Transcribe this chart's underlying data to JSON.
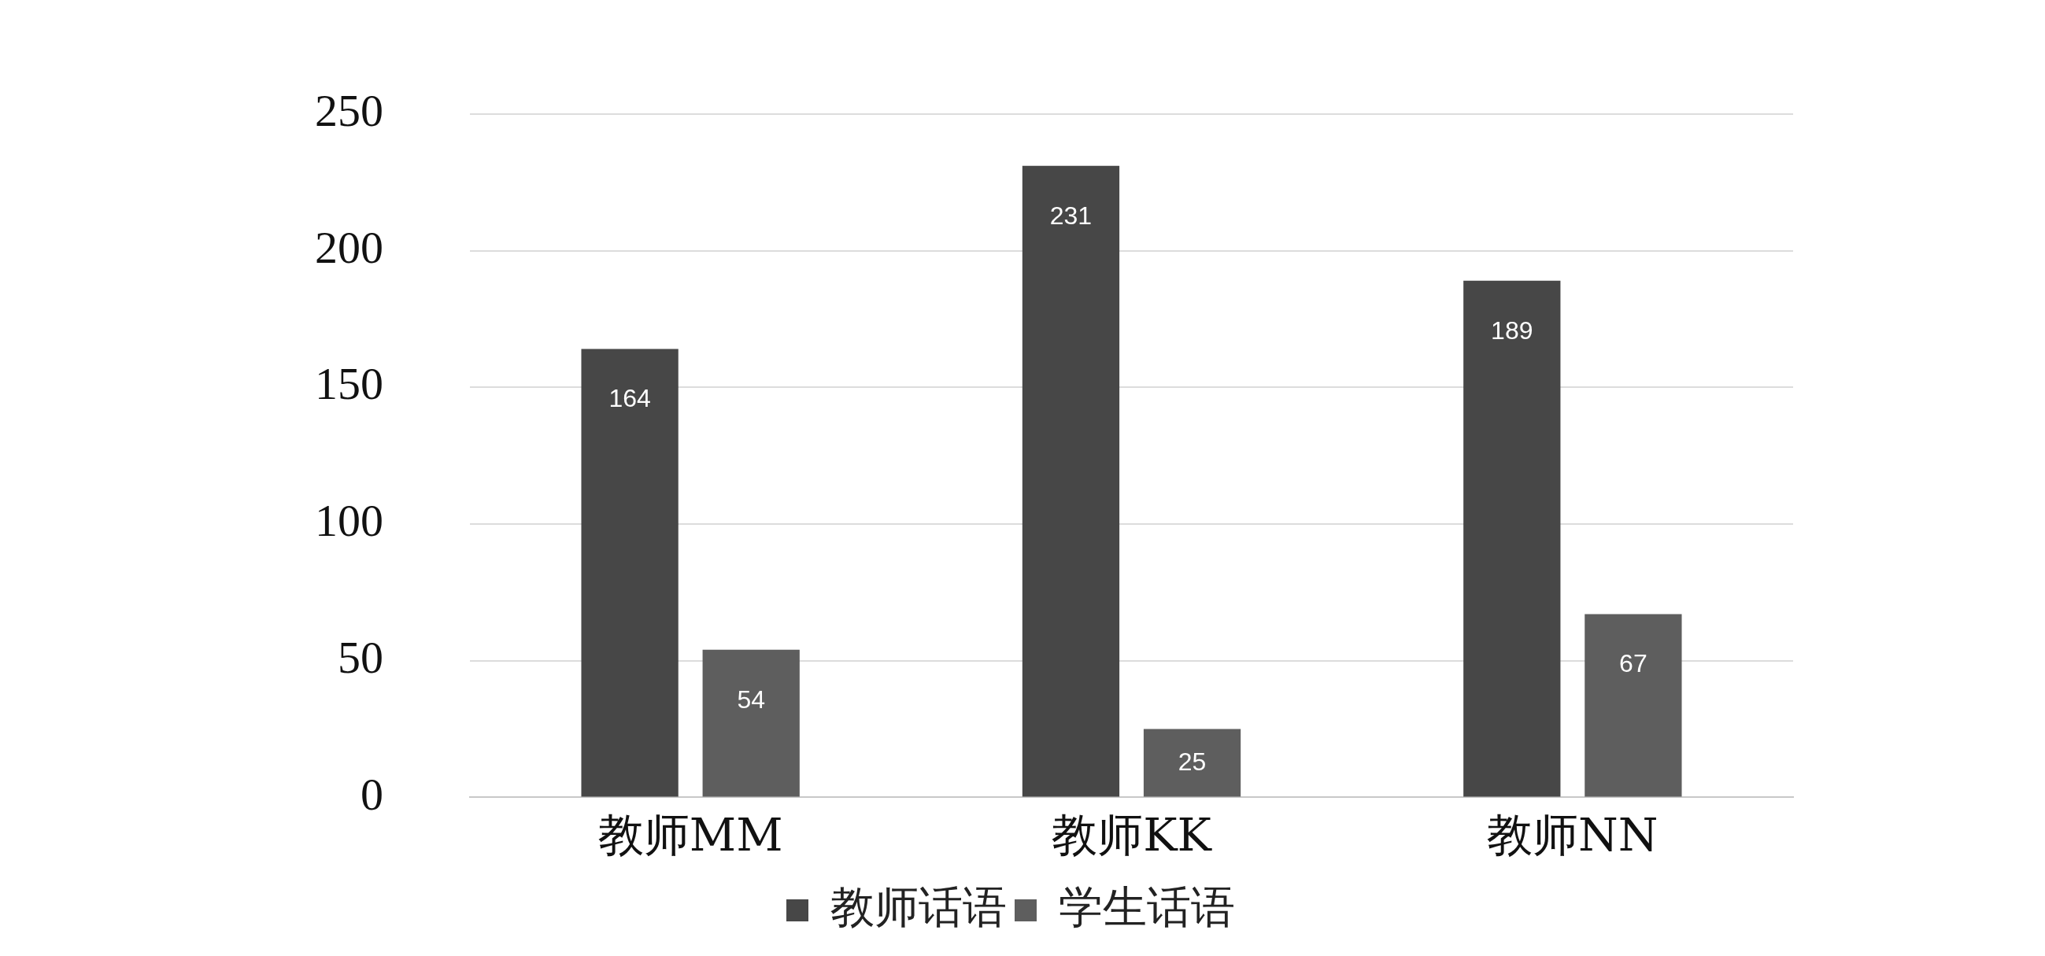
{
  "chart_data": {
    "type": "bar",
    "categories": [
      "教师MM",
      "教师KK",
      "教师NN"
    ],
    "series": [
      {
        "name": "教师话语",
        "color": "#474747",
        "values": [
          164,
          231,
          189
        ]
      },
      {
        "name": "学生话语",
        "color": "#5e5e5e",
        "values": [
          54,
          25,
          67
        ]
      }
    ],
    "ylim": [
      0,
      250
    ],
    "yticks": [
      0,
      50,
      100,
      150,
      200,
      250
    ],
    "grid": "y",
    "legend": "bottom",
    "data_labels": true
  }
}
